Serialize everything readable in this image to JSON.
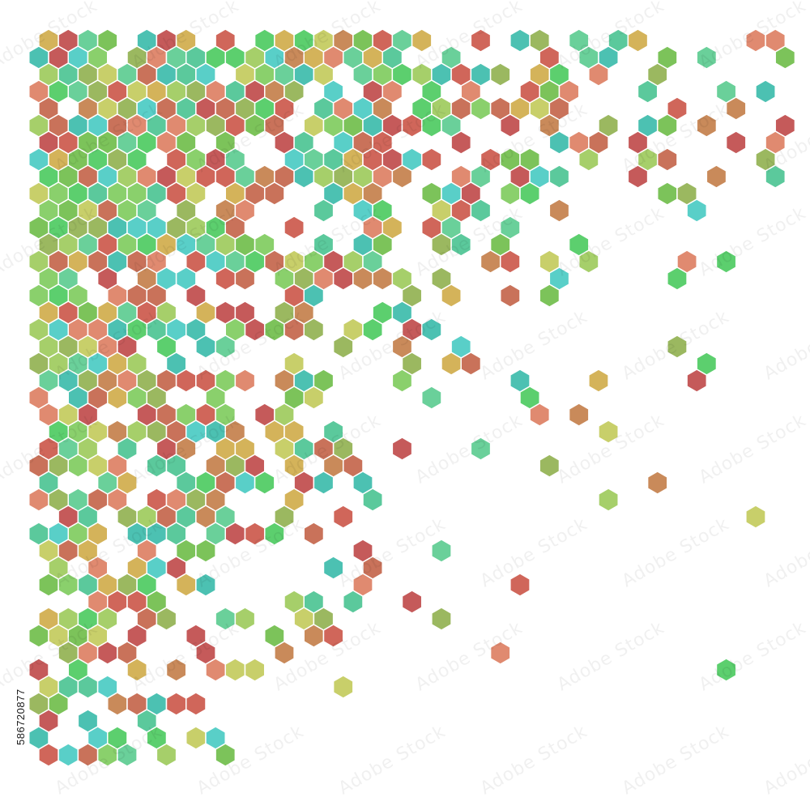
{
  "image": {
    "background": "#ffffff",
    "stock_id": "586720877",
    "watermark_text": "Adobe Stock",
    "palette": [
      "#7cc35a",
      "#5ccf6e",
      "#5bc99c",
      "#4cc1b2",
      "#a6cf6a",
      "#c8cf6a",
      "#d4b35a",
      "#c98a5a",
      "#c9725a",
      "#d0665a",
      "#c55a5a",
      "#e08a70",
      "#8ad06c",
      "#6ad09a",
      "#59cfc8",
      "#9bb860"
    ]
  }
}
